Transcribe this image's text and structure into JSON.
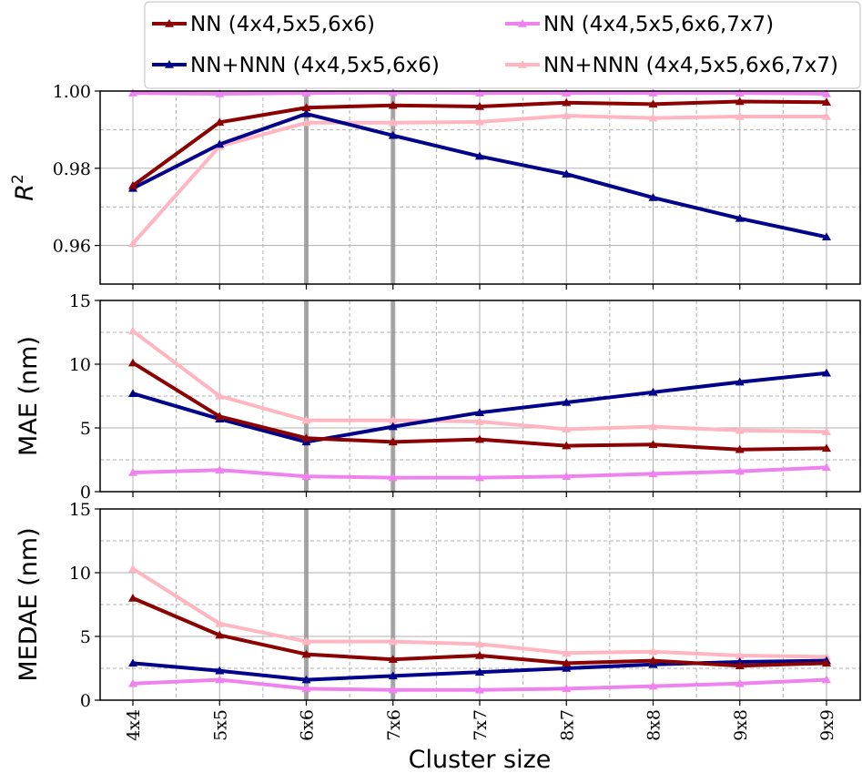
{
  "chart_data": {
    "type": "line",
    "title": "",
    "xlabel": "Cluster size",
    "categories": [
      "4x4",
      "5x5",
      "6x6",
      "7x6",
      "7x7",
      "8x7",
      "8x8",
      "9x8",
      "9x9"
    ],
    "highlight_categories": [
      "6x6",
      "7x6"
    ],
    "legend": {
      "placement": "top",
      "entries": [
        {
          "series": "NN (4x4,5x5,6x6)",
          "label": "NN (4x4,5x5,6x6)"
        },
        {
          "series": "NN (4x4,5x5,6x6,7x7)",
          "label": "NN (4x4,5x5,6x6,7x7)"
        },
        {
          "series": "NN+NNN (4x4,5x5,6x6)",
          "label": "NN+NNN (4x4,5x5,6x6)"
        },
        {
          "series": "NN+NNN (4x4,5x5,6x6,7x7)",
          "label": "NN+NNN (4x4,5x5,6x6,7x7)"
        }
      ]
    },
    "series_colors": {
      "NN (4x4,5x5,6x6)": "#8b0000",
      "NN (4x4,5x5,6x6,7x7)": "#ee82ee",
      "NN+NNN (4x4,5x5,6x6)": "#00008b",
      "NN+NNN (4x4,5x5,6x6,7x7)": "#ffb6c1"
    },
    "panels": [
      {
        "id": "r2",
        "ylabel": "R",
        "ylabel_superscript": "2",
        "ylim": [
          0.95,
          1.0
        ],
        "yticks": [
          0.96,
          0.98,
          1.0
        ],
        "ytick_labels": [
          "0.96",
          "0.98",
          "1.00"
        ],
        "series": [
          {
            "name": "NN (4x4,5x5,6x6,7x7)",
            "values": [
              0.9995,
              0.9993,
              0.9995,
              0.9996,
              0.9995,
              0.9995,
              0.9995,
              0.9995,
              0.9993
            ]
          },
          {
            "name": "NN+NNN (4x4,5x5,6x6,7x7)",
            "values": [
              0.9605,
              0.9857,
              0.9918,
              0.9918,
              0.992,
              0.9936,
              0.993,
              0.9934,
              0.9934
            ]
          },
          {
            "name": "NN+NNN (4x4,5x5,6x6)",
            "values": [
              0.9748,
              0.9862,
              0.9941,
              0.9885,
              0.9831,
              0.9785,
              0.9724,
              0.967,
              0.9622
            ]
          },
          {
            "name": "NN (4x4,5x5,6x6)",
            "values": [
              0.9755,
              0.9919,
              0.9957,
              0.9963,
              0.996,
              0.997,
              0.9966,
              0.9973,
              0.9971
            ]
          }
        ]
      },
      {
        "id": "mae",
        "ylabel": "MAE (nm)",
        "ylim": [
          0,
          15
        ],
        "yticks": [
          0,
          5,
          10,
          15
        ],
        "ytick_labels": [
          "0",
          "5",
          "10",
          "15"
        ],
        "series": [
          {
            "name": "NN (4x4,5x5,6x6,7x7)",
            "values": [
              1.5,
              1.7,
              1.2,
              1.1,
              1.1,
              1.2,
              1.4,
              1.6,
              1.9
            ]
          },
          {
            "name": "NN+NNN (4x4,5x5,6x6,7x7)",
            "values": [
              12.6,
              7.5,
              5.6,
              5.6,
              5.5,
              4.9,
              5.1,
              4.8,
              4.7
            ]
          },
          {
            "name": "NN+NNN (4x4,5x5,6x6)",
            "values": [
              7.7,
              5.7,
              3.9,
              5.1,
              6.2,
              7.0,
              7.8,
              8.6,
              9.3
            ]
          },
          {
            "name": "NN (4x4,5x5,6x6)",
            "values": [
              10.1,
              5.9,
              4.2,
              3.9,
              4.1,
              3.6,
              3.7,
              3.3,
              3.4
            ]
          }
        ]
      },
      {
        "id": "medae",
        "ylabel": "MEDAE (nm)",
        "ylim": [
          0,
          15
        ],
        "yticks": [
          0,
          5,
          10,
          15
        ],
        "ytick_labels": [
          "0",
          "5",
          "10",
          "15"
        ],
        "series": [
          {
            "name": "NN (4x4,5x5,6x6,7x7)",
            "values": [
              1.3,
              1.6,
              0.9,
              0.8,
              0.8,
              0.9,
              1.1,
              1.3,
              1.6
            ]
          },
          {
            "name": "NN+NNN (4x4,5x5,6x6,7x7)",
            "values": [
              10.3,
              6.0,
              4.6,
              4.6,
              4.4,
              3.7,
              3.8,
              3.5,
              3.4
            ]
          },
          {
            "name": "NN+NNN (4x4,5x5,6x6)",
            "values": [
              2.9,
              2.3,
              1.6,
              1.9,
              2.2,
              2.5,
              2.8,
              3.0,
              3.1
            ]
          },
          {
            "name": "NN (4x4,5x5,6x6)",
            "values": [
              8.0,
              5.1,
              3.6,
              3.2,
              3.5,
              2.9,
              3.1,
              2.7,
              2.9
            ]
          }
        ]
      }
    ]
  }
}
